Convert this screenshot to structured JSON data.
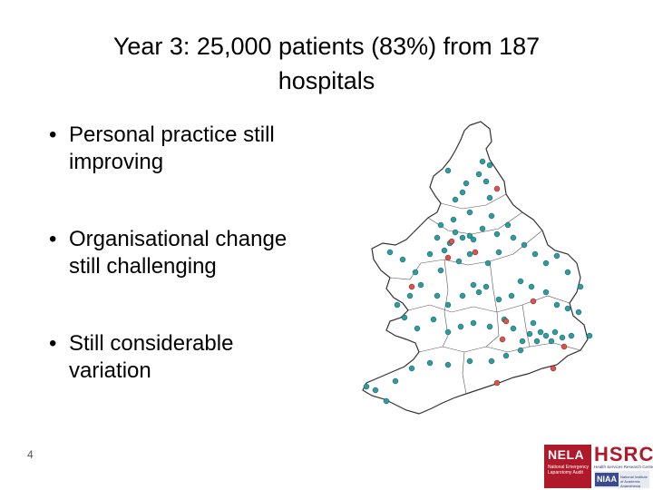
{
  "slide": {
    "title_line1": "Year 3: 25,000 patients (83%) from 187",
    "title_line2": "hospitals",
    "page_number": "4"
  },
  "bullets": [
    {
      "line1": "Personal practice still",
      "line2": "improving"
    },
    {
      "line1": "Organisational change",
      "line2": "still challenging"
    },
    {
      "line1": "Still considerable",
      "line2": "variation"
    }
  ],
  "bullet_symbol": "•",
  "map": {
    "colors": {
      "teal": "#2a9d9d",
      "red": "#d9534f",
      "outline": "#333333"
    }
  },
  "logos": {
    "nela": {
      "name": "NELA",
      "tagline": "National Emergency Laparotomy Audit"
    },
    "hsrc": {
      "name": "HSRC",
      "tagline": "Health Services Research Centre"
    },
    "niaa": {
      "name": "NIAA",
      "tagline": "National Institute of Academic Anaesthesia"
    }
  }
}
